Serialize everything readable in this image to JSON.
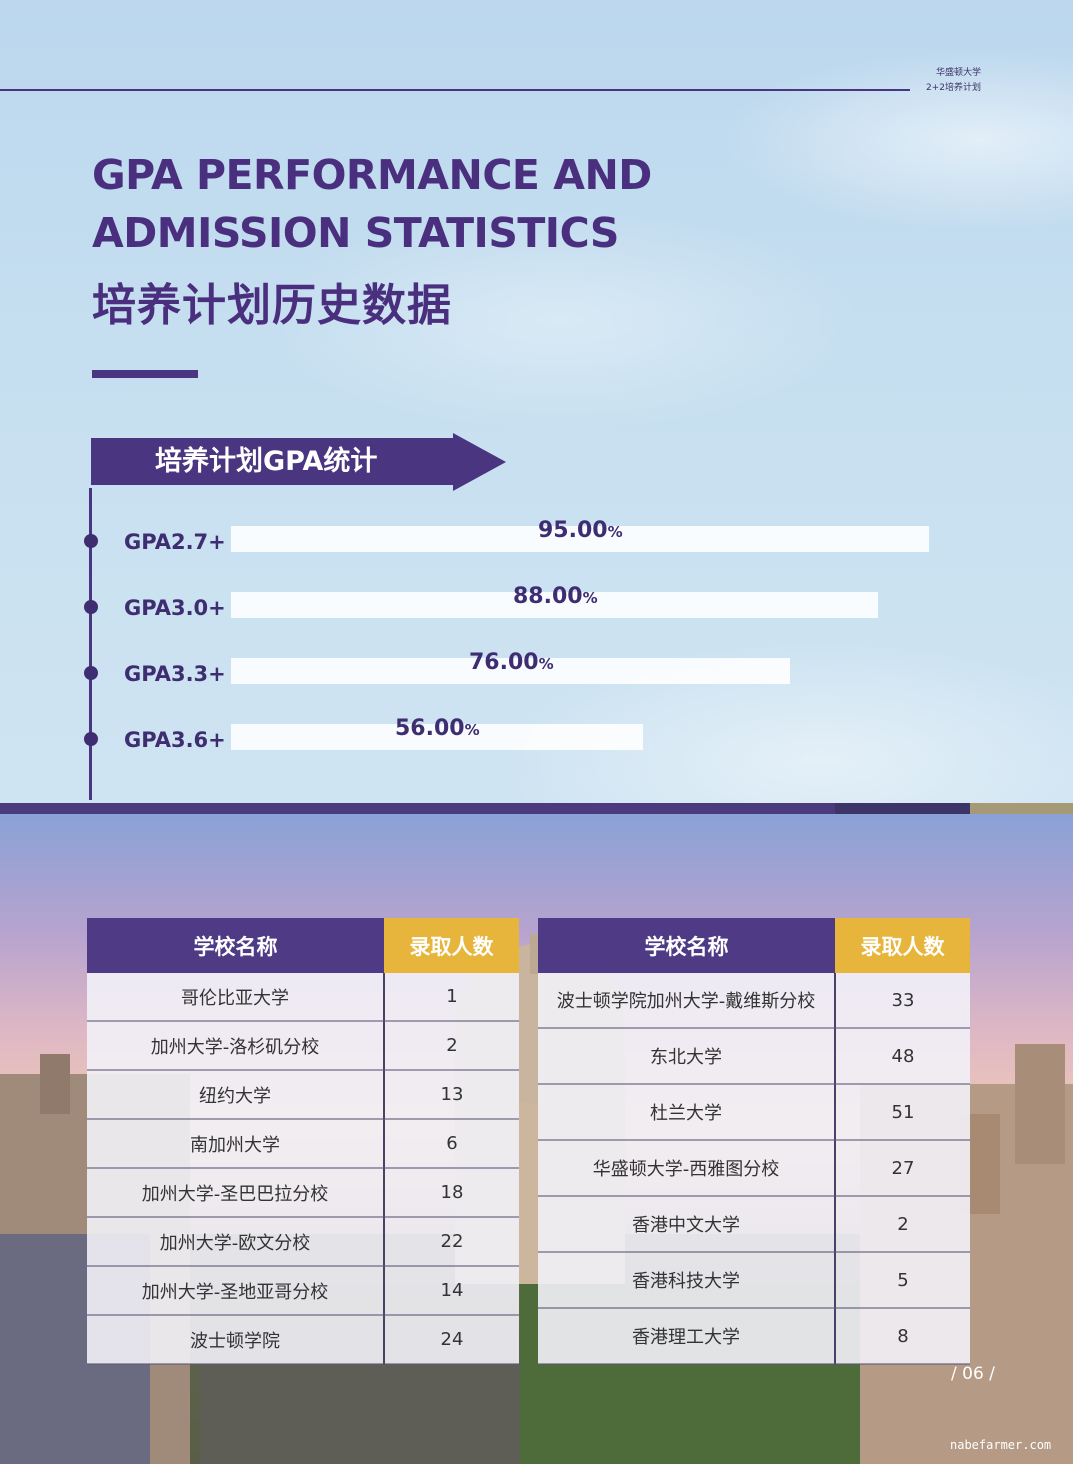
{
  "header": {
    "brand_line1": "华盛顿大学",
    "brand_line2": "2+2培养计划",
    "title_en_line1": "GPA PERFORMANCE AND",
    "title_en_line2": "ADMISSION STATISTICS",
    "title_cn": "培养计划历史数据"
  },
  "gpa_section": {
    "heading": "培养计划GPA统计",
    "percent_sign": "%",
    "rows": [
      {
        "label": "GPA2.7+",
        "value": "95.00",
        "percent": 95
      },
      {
        "label": "GPA3.0+",
        "value": "88.00",
        "percent": 88
      },
      {
        "label": "GPA3.3+",
        "value": "76.00",
        "percent": 76
      },
      {
        "label": "GPA3.6+",
        "value": "56.00",
        "percent": 56
      }
    ]
  },
  "admissions": {
    "col_school": "学校名称",
    "col_count": "录取人数",
    "left": [
      {
        "school": "哥伦比亚大学",
        "count": "1"
      },
      {
        "school": "加州大学-洛杉矶分校",
        "count": "2"
      },
      {
        "school": "纽约大学",
        "count": "13"
      },
      {
        "school": "南加州大学",
        "count": "6"
      },
      {
        "school": "加州大学-圣巴巴拉分校",
        "count": "18"
      },
      {
        "school": "加州大学-欧文分校",
        "count": "22"
      },
      {
        "school": "加州大学-圣地亚哥分校",
        "count": "14"
      },
      {
        "school": "波士顿学院",
        "count": "24"
      }
    ],
    "right": [
      {
        "school": "波士顿学院加州大学-戴维斯分校",
        "count": "33"
      },
      {
        "school": "东北大学",
        "count": "48"
      },
      {
        "school": "杜兰大学",
        "count": "51"
      },
      {
        "school": "华盛顿大学-西雅图分校",
        "count": "27"
      },
      {
        "school": "香港中文大学",
        "count": "2"
      },
      {
        "school": "香港科技大学",
        "count": "5"
      },
      {
        "school": "香港理工大学",
        "count": "8"
      }
    ]
  },
  "footer": {
    "page_number": "/ 06 /",
    "watermark": "nabefarmer.com"
  }
}
